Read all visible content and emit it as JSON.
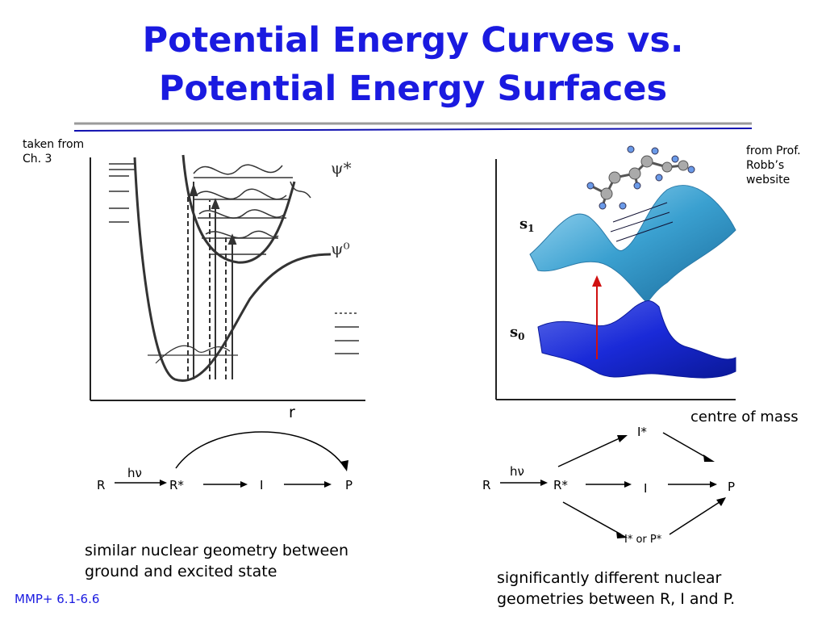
{
  "title": {
    "line1": "Potential Energy Curves vs.",
    "line2": "Potential Energy Surfaces"
  },
  "left": {
    "source_note": [
      "taken from",
      "Ch. 3"
    ],
    "axis_label": "r",
    "curve_labels": {
      "upper": "ψ*",
      "lower": "ψ⁰"
    },
    "scheme": {
      "R": "R",
      "hv": "hν",
      "Rstar": "R*",
      "I": "I",
      "P": "P"
    },
    "caption": [
      "similar nuclear geometry between",
      "ground and excited state"
    ]
  },
  "right": {
    "source_note": [
      "from Prof.",
      "Robb’s",
      "website"
    ],
    "surface_labels": {
      "s1": "s",
      "s1_sub": "1",
      "s0": "s",
      "s0_sub": "0"
    },
    "axis_label": "centre of mass",
    "scheme": {
      "R": "R",
      "hv": "hν",
      "Rstar": "R*",
      "Istar": "I*",
      "I": "I",
      "P": "P",
      "IstarOrPstar": "I* or P*"
    },
    "caption": [
      "significantly different nuclear",
      "geometries between R, I and P."
    ]
  },
  "footer": "MMP+ 6.1-6.6",
  "colors": {
    "title": "#1a1ae0",
    "rule_gray": "#9a9a9a",
    "rule_blue": "#1010b0",
    "surface_s1": "#3aa0d0",
    "surface_s0": "#1a2ad8",
    "excite_arrow": "#d01010"
  }
}
